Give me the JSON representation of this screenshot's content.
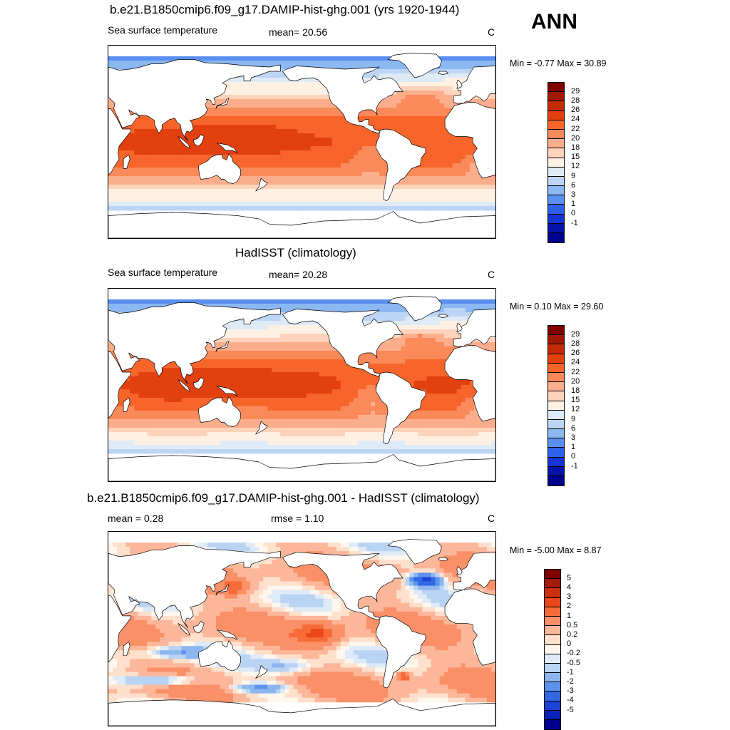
{
  "season_label": "ANN",
  "panels": [
    {
      "title": "b.e21.B1850cmip6.f09_g17.DAMIP-hist-ghg.001 (yrs 1920-1944)",
      "left_label": "Sea surface temperature",
      "center_label": "mean=  20.56",
      "units": "C",
      "minmax": "Min =  -0.77 Max =  30.89",
      "colorbar_labels": [
        "29",
        "28",
        "26",
        "24",
        "22",
        "20",
        "18",
        "15",
        "12",
        "9",
        "6",
        "3",
        "1",
        "0",
        "-1"
      ]
    },
    {
      "title": "HadISST (climatology)",
      "left_label": "Sea surface temperature",
      "center_label": "mean=  20.28",
      "units": "C",
      "minmax": "Min =   0.10 Max =  29.60",
      "colorbar_labels": [
        "29",
        "28",
        "26",
        "24",
        "22",
        "20",
        "18",
        "15",
        "12",
        "9",
        "6",
        "3",
        "1",
        "0",
        "-1"
      ]
    },
    {
      "title": "b.e21.B1850cmip6.f09_g17.DAMIP-hist-ghg.001 - HadISST (climatology)",
      "left_label": "mean =   0.28",
      "center_label": "rmse =   1.10",
      "units": "C",
      "minmax": "Min =  -5.00 Max =   8.87",
      "colorbar_labels": [
        "5",
        "4",
        "3",
        "2",
        "1",
        "0.5",
        "0.2",
        "0",
        "-0.2",
        "-0.5",
        "-1",
        "-2",
        "-3",
        "-4",
        "-5"
      ]
    }
  ],
  "colors": {
    "sst_scale": [
      "#800000",
      "#a01808",
      "#c42c06",
      "#e34010",
      "#f7652a",
      "#fa8a5a",
      "#fcae8c",
      "#fdd3bb",
      "#fef0e2",
      "#deebf7",
      "#bcd5f5",
      "#8cb8f2",
      "#5a8ff0",
      "#2d62e8",
      "#1235d4",
      "#0514a6",
      "#00008f"
    ],
    "diff_scale": [
      "#800000",
      "#a51a08",
      "#cc300a",
      "#e8481a",
      "#f76b38",
      "#fa9068",
      "#fcb79a",
      "#fee0cc",
      "#fff7ee",
      "#deeaf8",
      "#b9d3f3",
      "#8db6ef",
      "#5e93eb",
      "#3468e3",
      "#1a44d6",
      "#0a22b8",
      "#00008f"
    ],
    "land": "#ffffff",
    "coast": "#000000",
    "missing": "#ffffff"
  }
}
